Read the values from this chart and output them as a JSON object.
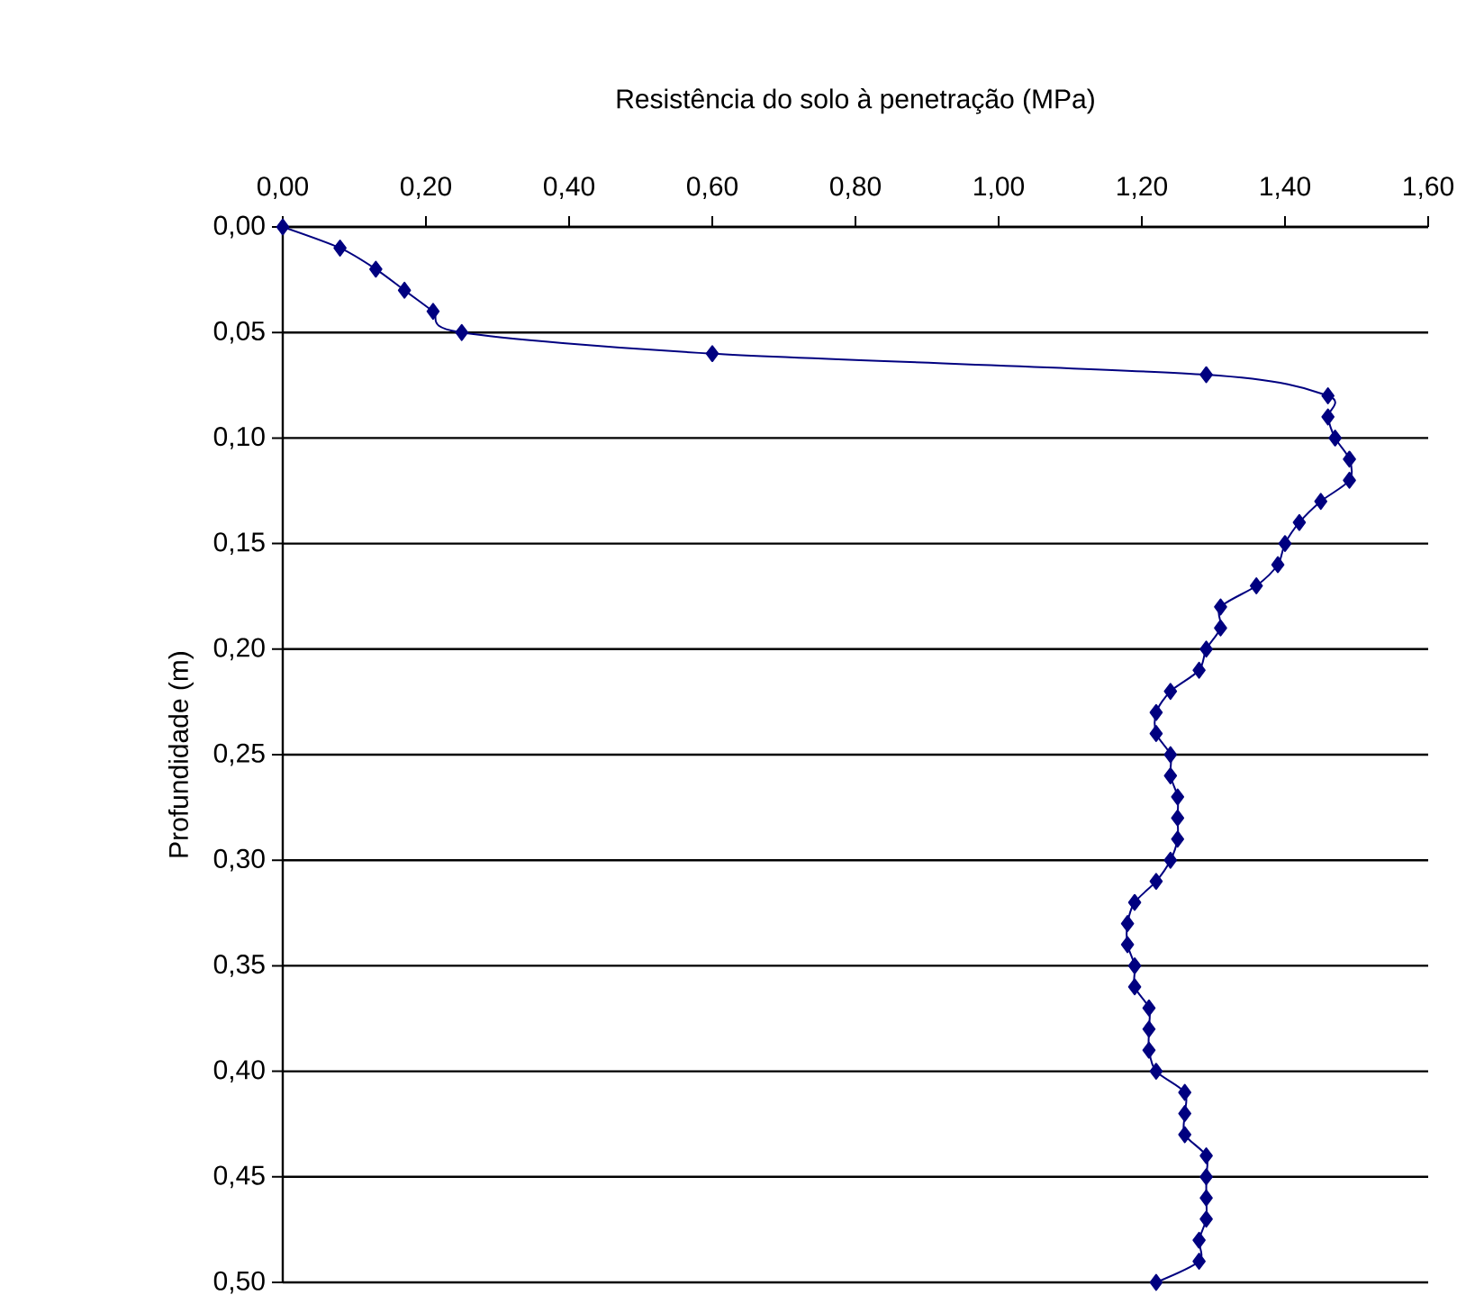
{
  "chart_data": {
    "type": "line",
    "xlabel": "Resistência do solo à penetração (MPa)",
    "ylabel": "Profundidade (m)",
    "series": [
      {
        "color": "#000080",
        "x": [
          0,
          0.08,
          0.13,
          0.17,
          0.21,
          0.25,
          0.6,
          1.29,
          1.46,
          1.46,
          1.47,
          1.49,
          1.49,
          1.45,
          1.42,
          1.4,
          1.39,
          1.36,
          1.31,
          1.31,
          1.29,
          1.28,
          1.24,
          1.22,
          1.22,
          1.24,
          1.24,
          1.25,
          1.25,
          1.25,
          1.24,
          1.22,
          1.19,
          1.18,
          1.18,
          1.19,
          1.19,
          1.21,
          1.21,
          1.21,
          1.22,
          1.26,
          1.26,
          1.26,
          1.29,
          1.29,
          1.29,
          1.29,
          1.28,
          1.28,
          1.22
        ],
        "values": [
          0,
          0.01,
          0.02,
          0.03,
          0.04,
          0.05,
          0.06,
          0.07,
          0.08,
          0.09,
          0.1,
          0.11,
          0.12,
          0.13,
          0.14,
          0.15,
          0.16,
          0.17,
          0.18,
          0.19,
          0.2,
          0.21,
          0.22,
          0.23,
          0.24,
          0.25,
          0.26,
          0.27,
          0.28,
          0.29,
          0.3,
          0.31,
          0.32,
          0.33,
          0.34,
          0.35,
          0.36,
          0.37,
          0.38,
          0.39,
          0.4,
          0.41,
          0.42,
          0.43,
          0.44,
          0.45,
          0.46,
          0.47,
          0.48,
          0.49,
          0.5
        ]
      }
    ],
    "xlim": [
      0,
      1.6
    ],
    "xticks": [
      {
        "value": 0,
        "label": "0,00"
      },
      {
        "value": 0.2,
        "label": "0,20"
      },
      {
        "value": 0.4,
        "label": "0,40"
      },
      {
        "value": 0.6,
        "label": "0,60"
      },
      {
        "value": 0.8,
        "label": "0,80"
      },
      {
        "value": 1.0,
        "label": "1,00"
      },
      {
        "value": 1.2,
        "label": "1,20"
      },
      {
        "value": 1.4,
        "label": "1,40"
      },
      {
        "value": 1.6,
        "label": "1,60"
      }
    ],
    "ylim": [
      0.5,
      0
    ],
    "yticks": [
      {
        "value": 0,
        "label": "0,00"
      },
      {
        "value": 0.05,
        "label": "0,05"
      },
      {
        "value": 0.1,
        "label": "0,10"
      },
      {
        "value": 0.15,
        "label": "0,15"
      },
      {
        "value": 0.2,
        "label": "0,20"
      },
      {
        "value": 0.25,
        "label": "0,25"
      },
      {
        "value": 0.3,
        "label": "0,30"
      },
      {
        "value": 0.35,
        "label": "0,35"
      },
      {
        "value": 0.4,
        "label": "0,40"
      },
      {
        "value": 0.45,
        "label": "0,45"
      },
      {
        "value": 0.5,
        "label": "0,50"
      }
    ],
    "grid": "y",
    "marker": "diamond",
    "line_style": "solid"
  }
}
